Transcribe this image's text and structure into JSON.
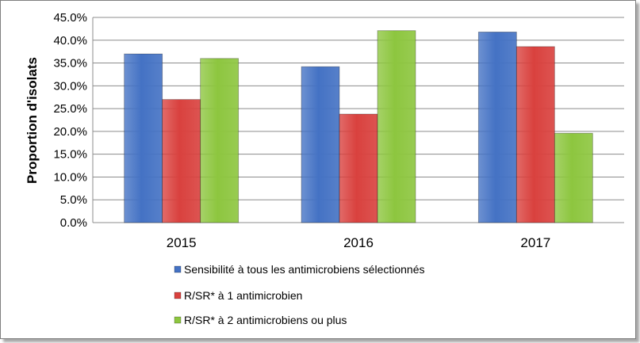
{
  "chart_data": {
    "type": "bar",
    "categories": [
      "2015",
      "2016",
      "2017"
    ],
    "series": [
      {
        "name": "Sensibilité à tous les antimicrobiens sélectionnés",
        "values": [
          37.0,
          34.2,
          41.8
        ],
        "color": "#4472c4"
      },
      {
        "name": "R/SR* à 1 antimicrobien",
        "values": [
          27.0,
          23.8,
          38.6
        ],
        "color": "#d9413e"
      },
      {
        "name": "R/SR* à 2 antimicrobiens ou plus",
        "values": [
          36.0,
          42.1,
          19.6
        ],
        "color": "#8dc63f"
      }
    ],
    "ylabel": "Proportion d'isolats",
    "xlabel": "",
    "ylim": [
      0,
      45
    ],
    "yticks": [
      "0.0%",
      "5.0%",
      "10.0%",
      "15.0%",
      "20.0%",
      "25.0%",
      "30.0%",
      "35.0%",
      "40.0%",
      "45.0%"
    ],
    "grid": true,
    "legend": "bottom"
  }
}
